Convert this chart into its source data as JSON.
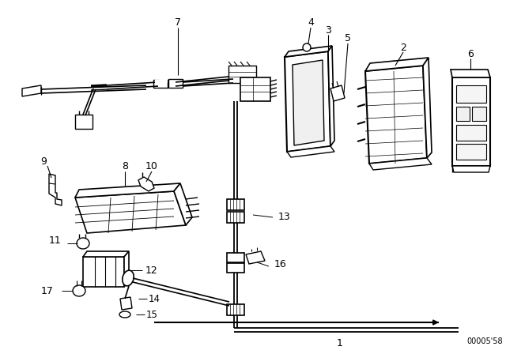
{
  "bg_color": "#ffffff",
  "line_color": "#000000",
  "diagram_ref": "00005'58",
  "figsize": [
    6.4,
    4.48
  ],
  "dpi": 100
}
